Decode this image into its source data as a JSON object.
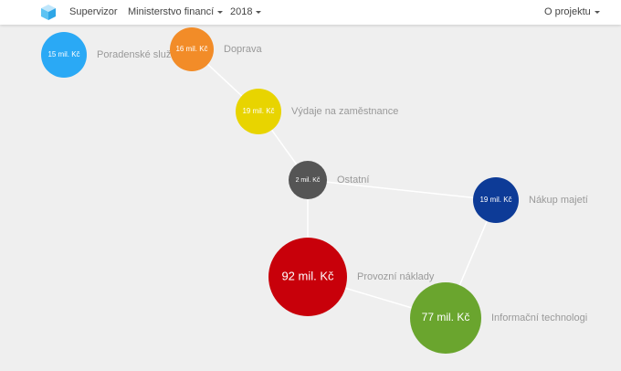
{
  "nav": {
    "brand": "Supervizor",
    "ministry": "Ministerstvo financí",
    "year": "2018",
    "about": "O projektu"
  },
  "nodes": [
    {
      "label": "Poradenské služ",
      "value": "15 mil. Kč"
    },
    {
      "label": "Doprava",
      "value": "16 mil. Kč"
    },
    {
      "label": "Výdaje na zaměstnance",
      "value": "19 mil. Kč"
    },
    {
      "label": "Ostatní",
      "value": "2 mil. Kč"
    },
    {
      "label": "Nákup majetí",
      "value": "19 mil. Kč"
    },
    {
      "label": "Provozní náklady",
      "value": "92 mil. Kč"
    },
    {
      "label": "Informační technologi",
      "value": "77 mil. Kč"
    }
  ]
}
